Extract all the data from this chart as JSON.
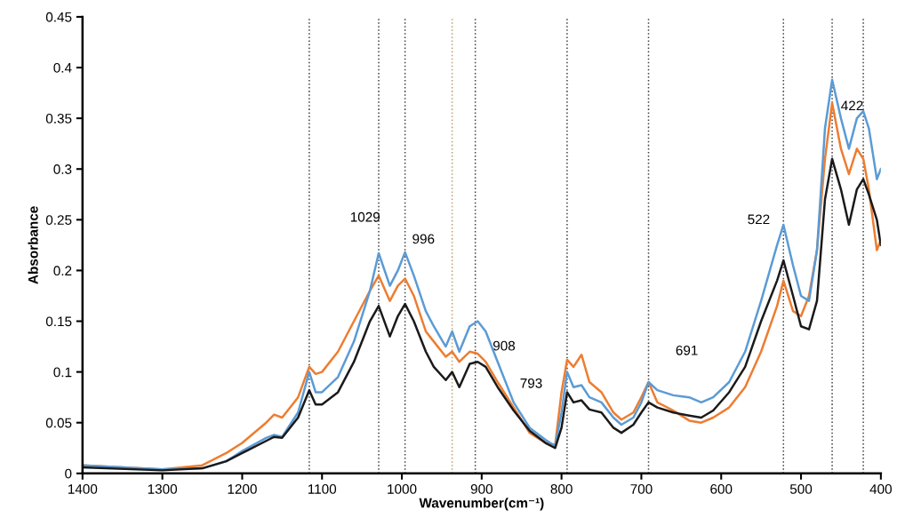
{
  "chart_data": {
    "type": "line",
    "xlabel": "Wavenumber(cm⁻¹)",
    "ylabel": "Absorbance",
    "xlim": [
      1400,
      400
    ],
    "xticks": [
      1400,
      1300,
      1200,
      1100,
      1000,
      900,
      800,
      700,
      600,
      500,
      400
    ],
    "ylim": [
      0,
      0.45
    ],
    "yticks": [
      0,
      0.05,
      0.1,
      0.15,
      0.2,
      0.25,
      0.3,
      0.35,
      0.4,
      0.45
    ],
    "grid": false,
    "legend": false,
    "marker": "none",
    "line_style": "solid",
    "x": [
      1400,
      1300,
      1250,
      1220,
      1200,
      1170,
      1160,
      1150,
      1130,
      1116,
      1108,
      1100,
      1080,
      1060,
      1040,
      1029,
      1015,
      1005,
      996,
      985,
      970,
      960,
      945,
      937,
      928,
      915,
      905,
      895,
      880,
      860,
      840,
      820,
      808,
      800,
      793,
      785,
      775,
      765,
      750,
      735,
      725,
      710,
      700,
      691,
      680,
      660,
      640,
      625,
      610,
      590,
      570,
      550,
      530,
      522,
      510,
      500,
      490,
      480,
      470,
      461,
      450,
      440,
      430,
      422,
      415,
      405,
      400
    ],
    "series": [
      {
        "color": "#ed7d31",
        "values": [
          0.008,
          0.004,
          0.008,
          0.02,
          0.03,
          0.05,
          0.058,
          0.055,
          0.075,
          0.105,
          0.098,
          0.1,
          0.12,
          0.15,
          0.18,
          0.195,
          0.17,
          0.185,
          0.192,
          0.175,
          0.14,
          0.13,
          0.115,
          0.12,
          0.11,
          0.12,
          0.118,
          0.11,
          0.09,
          0.065,
          0.04,
          0.03,
          0.028,
          0.08,
          0.112,
          0.105,
          0.117,
          0.09,
          0.08,
          0.06,
          0.053,
          0.06,
          0.075,
          0.09,
          0.07,
          0.062,
          0.052,
          0.05,
          0.055,
          0.065,
          0.085,
          0.12,
          0.165,
          0.19,
          0.16,
          0.155,
          0.175,
          0.22,
          0.31,
          0.365,
          0.32,
          0.295,
          0.32,
          0.31,
          0.28,
          0.22,
          0.23
        ]
      },
      {
        "color": "#5b9bd5",
        "values": [
          0.008,
          0.004,
          0.005,
          0.012,
          0.022,
          0.035,
          0.038,
          0.036,
          0.06,
          0.1,
          0.08,
          0.08,
          0.095,
          0.13,
          0.18,
          0.217,
          0.185,
          0.2,
          0.218,
          0.195,
          0.16,
          0.145,
          0.125,
          0.14,
          0.12,
          0.145,
          0.15,
          0.14,
          0.11,
          0.07,
          0.045,
          0.033,
          0.027,
          0.06,
          0.1,
          0.085,
          0.087,
          0.075,
          0.07,
          0.055,
          0.048,
          0.055,
          0.07,
          0.09,
          0.082,
          0.077,
          0.075,
          0.07,
          0.075,
          0.09,
          0.12,
          0.17,
          0.225,
          0.245,
          0.205,
          0.175,
          0.17,
          0.22,
          0.34,
          0.388,
          0.35,
          0.32,
          0.35,
          0.357,
          0.34,
          0.29,
          0.3
        ]
      },
      {
        "color": "#1a1a1a",
        "values": [
          0.006,
          0.003,
          0.005,
          0.012,
          0.02,
          0.032,
          0.036,
          0.035,
          0.055,
          0.082,
          0.068,
          0.068,
          0.08,
          0.11,
          0.15,
          0.165,
          0.135,
          0.155,
          0.167,
          0.15,
          0.12,
          0.105,
          0.092,
          0.1,
          0.085,
          0.108,
          0.11,
          0.105,
          0.085,
          0.062,
          0.042,
          0.03,
          0.025,
          0.045,
          0.08,
          0.07,
          0.072,
          0.063,
          0.06,
          0.045,
          0.04,
          0.048,
          0.06,
          0.07,
          0.065,
          0.06,
          0.057,
          0.055,
          0.062,
          0.08,
          0.105,
          0.15,
          0.19,
          0.21,
          0.175,
          0.145,
          0.142,
          0.17,
          0.27,
          0.31,
          0.28,
          0.245,
          0.28,
          0.29,
          0.275,
          0.25,
          0.225
        ]
      }
    ],
    "ref_lines": [
      {
        "axis": "x",
        "value": 1116,
        "color": "#404040",
        "line_style": "dotted"
      },
      {
        "axis": "x",
        "value": 1029,
        "color": "#404040",
        "line_style": "dotted"
      },
      {
        "axis": "x",
        "value": 996,
        "color": "#404040",
        "line_style": "dotted"
      },
      {
        "axis": "x",
        "value": 937,
        "color": "#b8a070",
        "line_style": "dotted"
      },
      {
        "axis": "x",
        "value": 908,
        "color": "#404040",
        "line_style": "dotted"
      },
      {
        "axis": "x",
        "value": 793,
        "color": "#404040",
        "line_style": "dotted"
      },
      {
        "axis": "x",
        "value": 691,
        "color": "#404040",
        "line_style": "dotted"
      },
      {
        "axis": "x",
        "value": 522,
        "color": "#404040",
        "line_style": "dotted"
      },
      {
        "axis": "x",
        "value": 461,
        "color": "#404040",
        "line_style": "dotted"
      },
      {
        "axis": "x",
        "value": 422,
        "color": "#404040",
        "line_style": "dotted"
      }
    ],
    "annotations": [
      "1029",
      "996",
      "908",
      "793",
      "691",
      "522",
      "422"
    ]
  }
}
